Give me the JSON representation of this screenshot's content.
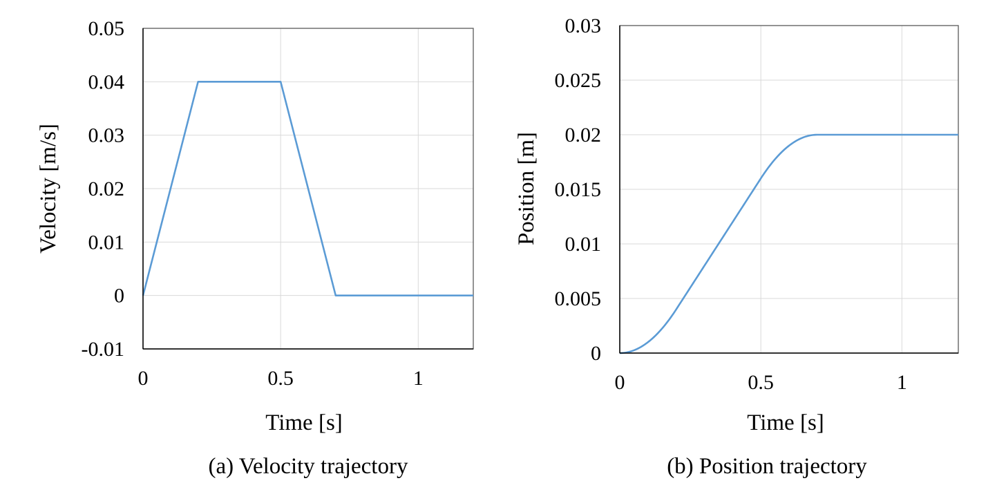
{
  "chart_data": [
    {
      "type": "line",
      "caption": "(a) Velocity trajectory",
      "title": "",
      "xlabel": "Time [s]",
      "ylabel": "Velocity [m/s]",
      "xlim": [
        0,
        1.2
      ],
      "ylim": [
        -0.01,
        0.05
      ],
      "xticks": [
        0,
        0.5,
        1
      ],
      "xtick_labels": [
        "0",
        "0.5",
        "1"
      ],
      "yticks": [
        -0.01,
        0,
        0.01,
        0.02,
        0.03,
        0.04,
        0.05
      ],
      "ytick_labels": [
        "-0.01",
        "0",
        "0.01",
        "0.02",
        "0.03",
        "0.04",
        "0.05"
      ],
      "grid": true,
      "series": [
        {
          "name": "Velocity",
          "color": "#5B9BD5",
          "x": [
            0,
            0.2,
            0.5,
            0.7,
            1.2
          ],
          "y": [
            0,
            0.04,
            0.04,
            0,
            0
          ]
        }
      ]
    },
    {
      "type": "line",
      "caption": "(b) Position trajectory",
      "title": "",
      "xlabel": "Time [s]",
      "ylabel": "Position [m]",
      "xlim": [
        0,
        1.2
      ],
      "ylim": [
        0,
        0.03
      ],
      "xticks": [
        0,
        0.5,
        1
      ],
      "xtick_labels": [
        "0",
        "0.5",
        "1"
      ],
      "yticks": [
        0,
        0.005,
        0.01,
        0.015,
        0.02,
        0.025,
        0.03
      ],
      "ytick_labels": [
        "0",
        "0.005",
        "0.01",
        "0.015",
        "0.02",
        "0.025",
        "0.03"
      ],
      "grid": true,
      "series": [
        {
          "name": "Position",
          "color": "#5B9BD5",
          "x": [
            0,
            0.05,
            0.1,
            0.15,
            0.2,
            0.3,
            0.4,
            0.5,
            0.55,
            0.6,
            0.65,
            0.7,
            1.2
          ],
          "y": [
            0,
            0.00025,
            0.001,
            0.00225,
            0.004,
            0.008,
            0.012,
            0.016,
            0.01775,
            0.019,
            0.01975,
            0.02,
            0.02
          ]
        }
      ]
    }
  ]
}
